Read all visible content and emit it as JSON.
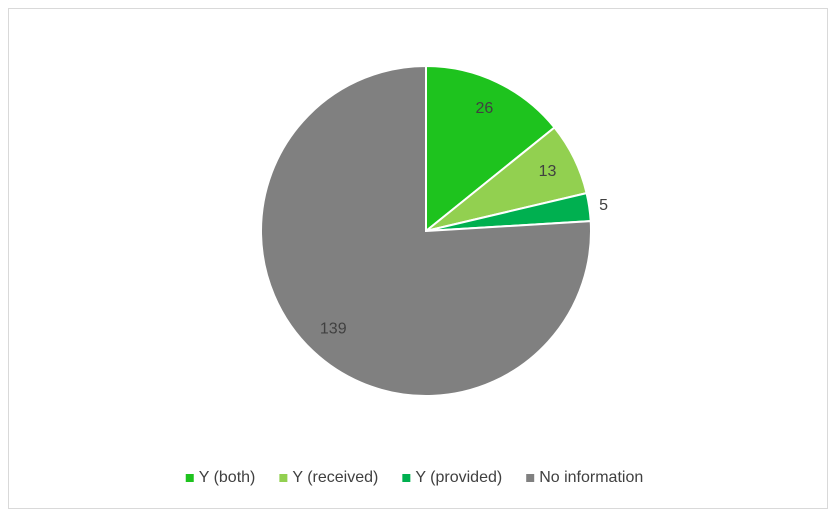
{
  "chart_data": {
    "type": "pie",
    "categories": [
      "Y (both)",
      "Y (received)",
      "Y (provided)",
      "No information"
    ],
    "values": [
      26,
      13,
      5,
      139
    ],
    "colors": [
      "#1ec31e",
      "#92d050",
      "#00b050",
      "#808080"
    ],
    "legend": "bottom"
  }
}
